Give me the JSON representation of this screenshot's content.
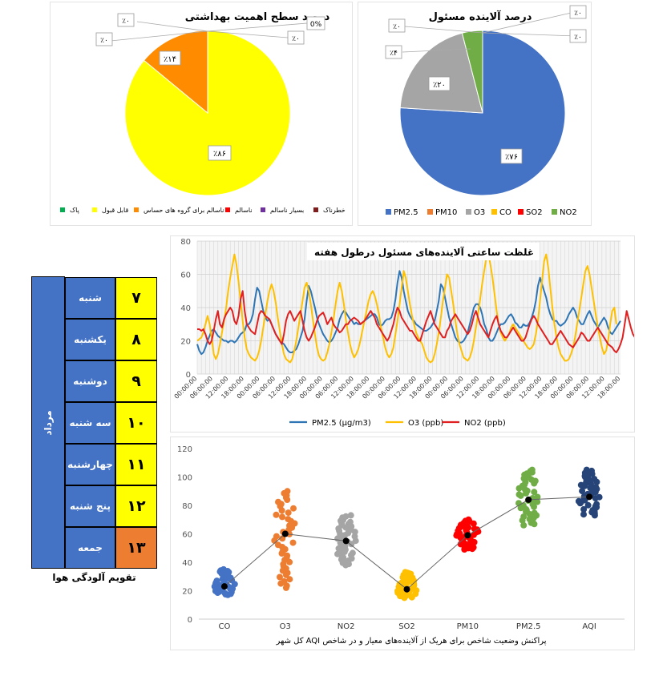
{
  "pie_health": {
    "title": "درصد سطح اهمیت بهداشتی",
    "slice_labels": [
      "٪۸۶",
      "٪۱۴"
    ],
    "zero_labels": [
      "٪۰",
      "0%",
      "٪۰",
      "٪۰"
    ],
    "legend": [
      "پاک",
      "قابل قبول",
      "ناسالم برای گروه های حساس",
      "ناسالم",
      "بسیار ناسالم",
      "خطرناک"
    ]
  },
  "pie_pollutant": {
    "title": "درصد آلاینده مسئول",
    "slice_labels": [
      "٪۷۶",
      "٪۲۰",
      "٪۴"
    ],
    "zero_labels": [
      "٪۰",
      "٪۰",
      "٪۰"
    ],
    "legend": [
      "PM2.5",
      "PM10",
      "O3",
      "CO",
      "SO2",
      "NO2"
    ]
  },
  "calendar": {
    "month": "مرداد",
    "caption": "تقویم آلودگی هوا",
    "rows": [
      {
        "day": "شنبه",
        "num": "۷"
      },
      {
        "day": "یکشنبه",
        "num": "۸"
      },
      {
        "day": "دوشنبه",
        "num": "۹"
      },
      {
        "day": "سه شنبه",
        "num": "۱۰"
      },
      {
        "day": "چهارشنبه",
        "num": "۱۱"
      },
      {
        "day": "پنج شنبه",
        "num": "۱۲"
      },
      {
        "day": "جمعه",
        "num": "۱۳"
      }
    ]
  },
  "line_chart": {
    "title": "غلظت ساعتی آلاینده‌های مسئول درطول هفته",
    "xtick_labels": [
      "00:00:00",
      "06:00:00",
      "12:00:00",
      "18:00:00",
      "00:00:00",
      "06:00:00",
      "12:00:00",
      "18:00:00",
      "00:00:00",
      "06:00:00",
      "12:00:00",
      "18:00:00",
      "00:00:00",
      "06:00:00",
      "12:00:00",
      "18:00:00",
      "00:00:00",
      "06:00:00",
      "12:00:00",
      "18:00:00",
      "00:00:00",
      "06:00:00",
      "12:00:00",
      "18:00:00",
      "00:00:00",
      "06:00:00",
      "12:00:00",
      "18:00:00"
    ],
    "legend": [
      "PM2.5 (µg/m3)",
      "O3 (ppb)",
      "NO2 (ppb)"
    ]
  },
  "scatter_chart": {
    "caption": "پراکنش وضعیت شاخص برای هریک از آلاینده‌های معیار و در شاخص AQI کل شهر"
  },
  "colors": {
    "blue": "#4472c4",
    "orange": "#ed7d31",
    "gray": "#a5a5a5",
    "yellow": "#ffff00",
    "gold": "#ffc000",
    "green": "#70ad47",
    "red": "#ff0000",
    "purple": "#7030a0",
    "maroon": "#7f1d1d",
    "darkblue": "#264478"
  },
  "chart_data": [
    {
      "type": "pie",
      "title": "درصد سطح اهمیت بهداشتی",
      "categories": [
        "پاک",
        "قابل قبول",
        "ناسالم برای گروه های حساس",
        "ناسالم",
        "بسیار ناسالم",
        "خطرناک"
      ],
      "values": [
        0,
        86,
        14,
        0,
        0,
        0
      ],
      "colors": [
        "#00b050",
        "#ffff00",
        "#ff8c00",
        "#ff0000",
        "#7030a0",
        "#7f1d1d"
      ],
      "legend": "bottom"
    },
    {
      "type": "pie",
      "title": "درصد آلاینده مسئول",
      "categories": [
        "PM2.5",
        "PM10",
        "O3",
        "CO",
        "SO2",
        "NO2"
      ],
      "values": [
        76,
        0,
        20,
        0,
        0,
        4
      ],
      "colors": [
        "#4472c4",
        "#ed7d31",
        "#a5a5a5",
        "#ffc000",
        "#ff0000",
        "#70ad47"
      ],
      "legend": "bottom"
    },
    {
      "type": "line",
      "title": "غلظت ساعتی آلاینده‌های مسئول درطول هفته",
      "ylim": [
        0,
        80
      ],
      "yticks": [
        0,
        20,
        40,
        60,
        80
      ],
      "grid": true,
      "legend": "bottom",
      "x_unit": "hour",
      "series": [
        {
          "name": "PM2.5 (µg/m3)",
          "color": "#2e75b6",
          "values": [
            18,
            14,
            12,
            13,
            16,
            20,
            23,
            26,
            27,
            25,
            23,
            22,
            21,
            20,
            20,
            19,
            20,
            20,
            19,
            20,
            22,
            24,
            25,
            26,
            30,
            30,
            32,
            36,
            45,
            52,
            50,
            44,
            38,
            34,
            32,
            33,
            30,
            27,
            24,
            22,
            20,
            19,
            18,
            16,
            14,
            13,
            13,
            14,
            15,
            18,
            22,
            26,
            33,
            44,
            53,
            50,
            45,
            40,
            34,
            30,
            27,
            24,
            22,
            20,
            19,
            20,
            22,
            25,
            28,
            33,
            36,
            38,
            37,
            35,
            33,
            32,
            30,
            31,
            30,
            30,
            31,
            32,
            33,
            34,
            35,
            36,
            36,
            34,
            30,
            29,
            30,
            32,
            33,
            33,
            34,
            38,
            45,
            55,
            62,
            58,
            50,
            44,
            38,
            35,
            33,
            32,
            30,
            29,
            28,
            27,
            26,
            26,
            27,
            28,
            30,
            32,
            38,
            44,
            54,
            52,
            46,
            40,
            34,
            30,
            26,
            22,
            20,
            19,
            19,
            20,
            22,
            25,
            30,
            35,
            40,
            42,
            42,
            40,
            36,
            30,
            27,
            22,
            20,
            20,
            22,
            25,
            28,
            30,
            30,
            31,
            33,
            35,
            36,
            34,
            31,
            30,
            28,
            28,
            30,
            29,
            29,
            31,
            34,
            38,
            44,
            53,
            58,
            54,
            50,
            46,
            40,
            36,
            33,
            32,
            32,
            30,
            29,
            30,
            31,
            33,
            36,
            38,
            40,
            38,
            34,
            32,
            30,
            30,
            33,
            36,
            38,
            35,
            32,
            30,
            28,
            30,
            32,
            34,
            32,
            28,
            25,
            24,
            26,
            28,
            30,
            32
          ]
        },
        {
          "name": "O3 (ppb)",
          "color": "#ffc000",
          "values": [
            20,
            21,
            22,
            25,
            30,
            35,
            30,
            22,
            12,
            9,
            12,
            18,
            25,
            32,
            40,
            50,
            58,
            65,
            72,
            66,
            56,
            44,
            32,
            22,
            15,
            12,
            10,
            9,
            8,
            10,
            14,
            20,
            28,
            36,
            44,
            50,
            54,
            50,
            43,
            34,
            26,
            18,
            12,
            9,
            8,
            7,
            9,
            14,
            20,
            28,
            36,
            44,
            52,
            55,
            50,
            42,
            33,
            24,
            16,
            11,
            9,
            8,
            9,
            13,
            18,
            25,
            33,
            42,
            50,
            55,
            50,
            42,
            33,
            25,
            18,
            13,
            10,
            12,
            15,
            20,
            26,
            32,
            38,
            44,
            48,
            50,
            47,
            42,
            36,
            28,
            22,
            16,
            12,
            10,
            12,
            16,
            24,
            32,
            42,
            52,
            62,
            58,
            50,
            42,
            35,
            30,
            25,
            22,
            20,
            18,
            14,
            10,
            8,
            7,
            8,
            12,
            18,
            25,
            34,
            44,
            52,
            60,
            58,
            50,
            42,
            32,
            24,
            18,
            14,
            10,
            9,
            8,
            10,
            14,
            20,
            28,
            36,
            45,
            54,
            62,
            70,
            72,
            66,
            58,
            48,
            38,
            30,
            25,
            22,
            20,
            22,
            24,
            28,
            30,
            28,
            26,
            24,
            22,
            20,
            18,
            16,
            15,
            16,
            18,
            24,
            32,
            44,
            56,
            68,
            72,
            64,
            52,
            40,
            30,
            22,
            16,
            12,
            10,
            8,
            8,
            9,
            12,
            16,
            22,
            30,
            38,
            46,
            54,
            62,
            65,
            60,
            52,
            44,
            36,
            28,
            22,
            16,
            12,
            14,
            20,
            30,
            38,
            40,
            30
          ]
        },
        {
          "name": "NO2 (ppb)",
          "color": "#e02020",
          "values": [
            27,
            27,
            26,
            27,
            24,
            20,
            18,
            20,
            26,
            33,
            38,
            30,
            28,
            33,
            36,
            38,
            40,
            38,
            32,
            30,
            35,
            45,
            50,
            38,
            30,
            28,
            26,
            25,
            24,
            30,
            36,
            38,
            37,
            35,
            34,
            33,
            30,
            27,
            24,
            22,
            20,
            18,
            24,
            32,
            36,
            38,
            35,
            32,
            34,
            36,
            38,
            32,
            26,
            22,
            20,
            22,
            25,
            28,
            32,
            35,
            36,
            37,
            34,
            30,
            32,
            34,
            30,
            28,
            27,
            25,
            26,
            28,
            30,
            30,
            32,
            33,
            34,
            33,
            32,
            30,
            31,
            32,
            34,
            36,
            38,
            36,
            34,
            30,
            28,
            26,
            24,
            22,
            20,
            22,
            26,
            30,
            36,
            40,
            38,
            34,
            32,
            30,
            28,
            26,
            26,
            24,
            22,
            20,
            20,
            24,
            28,
            32,
            35,
            38,
            34,
            30,
            28,
            26,
            24,
            22,
            22,
            26,
            28,
            32,
            34,
            36,
            34,
            32,
            30,
            28,
            26,
            24,
            26,
            30,
            35,
            38,
            34,
            30,
            28,
            26,
            24,
            22,
            26,
            30,
            33,
            35,
            30,
            26,
            24,
            22,
            22,
            24,
            26,
            28,
            26,
            24,
            22,
            20,
            20,
            22,
            26,
            30,
            33,
            35,
            33,
            30,
            28,
            26,
            24,
            22,
            20,
            18,
            18,
            20,
            22,
            24,
            26,
            24,
            22,
            20,
            18,
            17,
            16,
            18,
            20,
            22,
            25,
            24,
            22,
            20,
            20,
            22,
            24,
            26,
            28,
            26,
            24,
            22,
            20,
            18,
            17,
            16,
            14,
            13,
            15,
            18,
            22,
            30,
            38,
            33,
            28,
            24,
            22
          ]
        }
      ]
    },
    {
      "type": "scatter",
      "title": "",
      "caption": "پراکنش وضعیت شاخص برای هریک از آلاینده‌های معیار و در شاخص AQI کل شهر",
      "categories": [
        "CO",
        "O3",
        "NO2",
        "SO2",
        "PM10",
        "PM2.5",
        "AQI"
      ],
      "ylim": [
        0,
        120
      ],
      "yticks": [
        0,
        20,
        40,
        60,
        80,
        100,
        120
      ],
      "means": [
        23,
        60,
        55,
        21,
        59,
        84,
        86
      ],
      "ranges": [
        [
          17,
          35
        ],
        [
          22,
          90
        ],
        [
          38,
          73
        ],
        [
          15,
          33
        ],
        [
          49,
          70
        ],
        [
          66,
          105
        ],
        [
          73,
          105
        ]
      ],
      "colors": [
        "#4472c4",
        "#ed7d31",
        "#a5a5a5",
        "#ffc000",
        "#ff0000",
        "#70ad47",
        "#264478"
      ]
    }
  ]
}
